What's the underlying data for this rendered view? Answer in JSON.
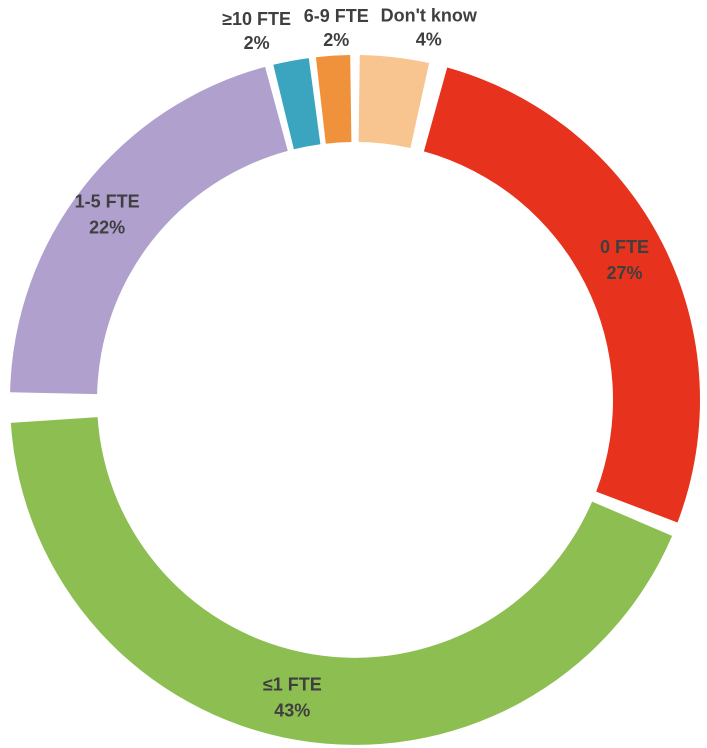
{
  "chart_data": {
    "type": "pie",
    "subtype": "donut",
    "title": "",
    "legend_position": "none",
    "direction": "clockwise",
    "start_angle_deg": 0,
    "background": "#FFFFFF",
    "label_color": "#3F3F3F",
    "categories": [
      "Don't know",
      "0 FTE",
      "≤1 FTE",
      "1-5 FTE",
      "≥10 FTE",
      "6-9 FTE"
    ],
    "values": [
      4,
      27,
      43,
      22,
      2,
      2
    ],
    "slices": [
      {
        "label": "Don't know",
        "value": 4,
        "pct_label": "4%",
        "color": "#F8C48F",
        "label_placement": "outside"
      },
      {
        "label": "0 FTE",
        "value": 27,
        "pct_label": "27%",
        "color": "#E7331D",
        "label_placement": "inside"
      },
      {
        "label": "≤1 FTE",
        "value": 43,
        "pct_label": "43%",
        "color": "#8DBE51",
        "label_placement": "inside"
      },
      {
        "label": "1-5 FTE",
        "value": 22,
        "pct_label": "22%",
        "color": "#B0A0CD",
        "label_placement": "inside"
      },
      {
        "label": "≥10 FTE",
        "value": 2,
        "pct_label": "2%",
        "color": "#3BA5C0",
        "label_placement": "outside"
      },
      {
        "label": "6-9 FTE",
        "value": 2,
        "pct_label": "2%",
        "color": "#F0913C",
        "label_placement": "outside"
      }
    ]
  }
}
